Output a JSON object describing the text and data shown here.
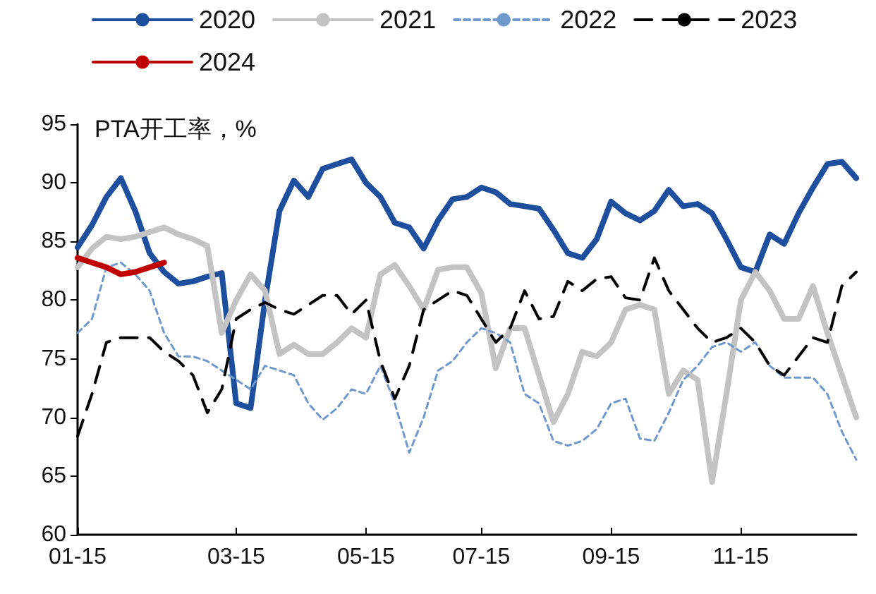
{
  "chart_data": {
    "type": "line",
    "ylabel": "PTA开工率，%",
    "categories": [
      "01-15",
      null,
      null,
      null,
      null,
      null,
      null,
      null,
      null,
      null,
      null,
      "03-15",
      null,
      null,
      null,
      null,
      null,
      null,
      null,
      null,
      "05-15",
      null,
      null,
      null,
      null,
      null,
      null,
      null,
      "07-15",
      null,
      null,
      null,
      null,
      null,
      null,
      null,
      null,
      "09-15",
      null,
      null,
      null,
      null,
      null,
      null,
      null,
      null,
      "11-15",
      null,
      null,
      null,
      null,
      null,
      null,
      null,
      null
    ],
    "ylim": [
      60,
      95
    ],
    "yticks": [
      60,
      65,
      70,
      75,
      80,
      85,
      90,
      95
    ],
    "grid": false,
    "legend": "top",
    "marker": "none",
    "series": [
      {
        "name": "2020",
        "color": "#1d4f9e",
        "line_style": "solid",
        "values": [
          84.5,
          86.4,
          88.8,
          90.4,
          87.6,
          84,
          82.4,
          81.4,
          81.6,
          82,
          82.3,
          71.2,
          70.8,
          80,
          87.6,
          90.2,
          88.8,
          91.2,
          91.6,
          92,
          90,
          88.8,
          86.6,
          86.2,
          84.4,
          86.8,
          88.6,
          88.8,
          89.6,
          89.2,
          88.2,
          88,
          87.8,
          86,
          84,
          83.6,
          85.2,
          88.4,
          87.4,
          86.8,
          87.6,
          89.4,
          88,
          88.2,
          87.4,
          85.2,
          82.8,
          82.4,
          85.6,
          84.8,
          87.4,
          89.6,
          91.6,
          91.8,
          90.4
        ]
      },
      {
        "name": "2021",
        "color": "#c3c3c3",
        "line_style": "solid",
        "values": [
          82.8,
          84.4,
          85.4,
          85.2,
          85.4,
          85.8,
          86.2,
          85.6,
          85.2,
          84.6,
          77.2,
          80,
          82.2,
          80.8,
          75.4,
          76.2,
          75.4,
          75.4,
          76.4,
          77.6,
          76.8,
          82.2,
          83,
          81.2,
          79.2,
          82.6,
          82.8,
          82.8,
          80.6,
          74.2,
          77.6,
          77.6,
          73.6,
          69.6,
          72,
          75.6,
          75.2,
          76.4,
          79.2,
          79.6,
          79.2,
          72,
          74,
          73.2,
          64.5,
          72,
          80,
          82.4,
          80.8,
          78.4,
          78.4,
          81.2,
          77.2,
          73.6,
          70
        ]
      },
      {
        "name": "2022",
        "color": "#6f98cc",
        "line_style": "dotted",
        "values": [
          77.2,
          78.4,
          82.8,
          83.2,
          82.2,
          80.8,
          77.2,
          75.2,
          75.2,
          74.8,
          74,
          73.2,
          72.4,
          74.4,
          74,
          73.6,
          71.2,
          69.8,
          70.8,
          72.4,
          72,
          74.4,
          71.2,
          67,
          70,
          74,
          74.8,
          76.4,
          77.6,
          77.2,
          76.4,
          72,
          71.2,
          68,
          67.6,
          68,
          69,
          71.2,
          71.6,
          68.2,
          68,
          70.4,
          73.2,
          74.4,
          76,
          76.4,
          75.6,
          76.4,
          74.4,
          73.4,
          73.4,
          73.4,
          72,
          68.8,
          66.4
        ]
      },
      {
        "name": "2023",
        "color": "#000000",
        "line_style": "dashed",
        "values": [
          68.4,
          72,
          76.4,
          76.8,
          76.8,
          76.8,
          75.6,
          74.8,
          73.6,
          70.4,
          72.4,
          78.4,
          79.2,
          79.8,
          79.2,
          78.8,
          79.6,
          80.4,
          80.4,
          78.8,
          80,
          74.8,
          71.6,
          74.4,
          79.2,
          80,
          80.8,
          80.4,
          78.4,
          76.4,
          77.6,
          80.8,
          78.4,
          78.6,
          81.6,
          80.8,
          81.8,
          82,
          80.2,
          80,
          83.6,
          80.8,
          79.2,
          77.6,
          76.4,
          76.8,
          77.6,
          76.4,
          74.4,
          73.6,
          75.2,
          76.8,
          76.4,
          81.2,
          82.4
        ]
      },
      {
        "name": "2024",
        "color": "#c00000",
        "line_style": "solid",
        "values": [
          83.6,
          83.2,
          82.8,
          82.2,
          82.4,
          82.8,
          83.2,
          null,
          null,
          null,
          null,
          null,
          null,
          null,
          null,
          null,
          null,
          null,
          null,
          null,
          null,
          null,
          null,
          null,
          null,
          null,
          null,
          null,
          null,
          null,
          null,
          null,
          null,
          null,
          null,
          null,
          null,
          null,
          null,
          null,
          null,
          null,
          null,
          null,
          null,
          null,
          null,
          null,
          null,
          null,
          null,
          null,
          null,
          null,
          null
        ]
      }
    ]
  }
}
